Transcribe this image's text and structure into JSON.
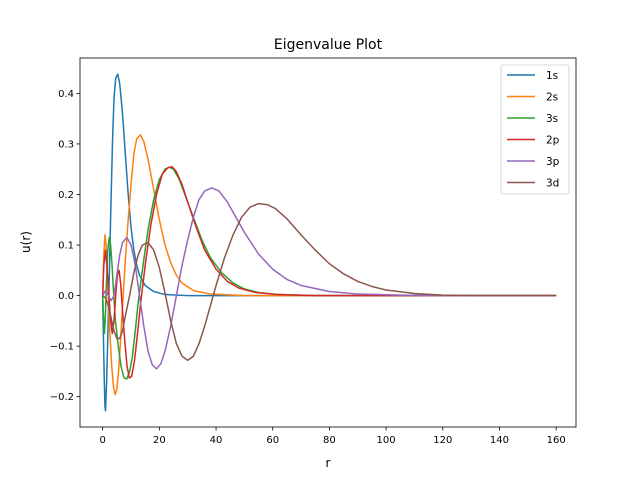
{
  "chart_data": {
    "type": "line",
    "title": "Eigenvalue Plot",
    "xlabel": "r",
    "ylabel": "u(r)",
    "xlim": [
      -8,
      167
    ],
    "ylim": [
      -0.26,
      0.47
    ],
    "xticks": [
      0,
      20,
      40,
      60,
      80,
      100,
      120,
      140,
      160
    ],
    "xtick_labels": [
      "0",
      "20",
      "40",
      "60",
      "80",
      "100",
      "120",
      "140",
      "160"
    ],
    "yticks": [
      -0.2,
      -0.1,
      0.0,
      0.1,
      0.2,
      0.3,
      0.4
    ],
    "ytick_labels": [
      "−0.2",
      "−0.1",
      "0.0",
      "0.1",
      "0.2",
      "0.3",
      "0.4"
    ],
    "grid": false,
    "legend_position": "top-right",
    "series": [
      {
        "name": "1s",
        "color": "#1f77b4",
        "points": [
          [
            0,
            0
          ],
          [
            0.5,
            -0.15
          ],
          [
            0.8,
            -0.22
          ],
          [
            1.0,
            -0.228
          ],
          [
            1.4,
            -0.17
          ],
          [
            2.0,
            -0.04
          ],
          [
            2.5,
            0.08
          ],
          [
            3.0,
            0.2
          ],
          [
            3.5,
            0.31
          ],
          [
            4.0,
            0.39
          ],
          [
            4.6,
            0.43
          ],
          [
            5.3,
            0.438
          ],
          [
            6.0,
            0.42
          ],
          [
            7.0,
            0.36
          ],
          [
            8.0,
            0.28
          ],
          [
            9.0,
            0.2
          ],
          [
            10.0,
            0.135
          ],
          [
            11.0,
            0.09
          ],
          [
            12.0,
            0.06
          ],
          [
            13.0,
            0.04
          ],
          [
            15.0,
            0.02
          ],
          [
            18.0,
            0.008
          ],
          [
            22.0,
            0.002
          ],
          [
            30.0,
            0.0
          ],
          [
            160,
            0.0
          ]
        ]
      },
      {
        "name": "2s",
        "color": "#ff7f0e",
        "points": [
          [
            0,
            0
          ],
          [
            0.4,
            0.08
          ],
          [
            0.8,
            0.12
          ],
          [
            1.2,
            0.1
          ],
          [
            1.6,
            0.05
          ],
          [
            2.0,
            -0.01
          ],
          [
            2.6,
            -0.08
          ],
          [
            3.2,
            -0.14
          ],
          [
            3.8,
            -0.18
          ],
          [
            4.4,
            -0.196
          ],
          [
            5.0,
            -0.185
          ],
          [
            5.6,
            -0.15
          ],
          [
            6.3,
            -0.09
          ],
          [
            7.0,
            -0.02
          ],
          [
            8.0,
            0.07
          ],
          [
            9.0,
            0.15
          ],
          [
            10.0,
            0.22
          ],
          [
            11.0,
            0.28
          ],
          [
            12.0,
            0.31
          ],
          [
            13.3,
            0.318
          ],
          [
            14.5,
            0.305
          ],
          [
            16.0,
            0.27
          ],
          [
            18.0,
            0.21
          ],
          [
            20.0,
            0.15
          ],
          [
            22.0,
            0.1
          ],
          [
            24.0,
            0.065
          ],
          [
            26.0,
            0.04
          ],
          [
            28.0,
            0.025
          ],
          [
            32.0,
            0.01
          ],
          [
            38.0,
            0.003
          ],
          [
            50.0,
            0.0
          ],
          [
            160,
            0.0
          ]
        ]
      },
      {
        "name": "3s",
        "color": "#2ca02c",
        "points": [
          [
            0,
            0
          ],
          [
            0.3,
            -0.04
          ],
          [
            0.6,
            -0.075
          ],
          [
            0.9,
            -0.05
          ],
          [
            1.3,
            0.02
          ],
          [
            1.8,
            0.09
          ],
          [
            2.3,
            0.115
          ],
          [
            2.8,
            0.1
          ],
          [
            3.3,
            0.06
          ],
          [
            3.8,
            0.01
          ],
          [
            4.5,
            -0.05
          ],
          [
            5.5,
            -0.1
          ],
          [
            6.5,
            -0.14
          ],
          [
            7.5,
            -0.163
          ],
          [
            8.5,
            -0.165
          ],
          [
            9.5,
            -0.15
          ],
          [
            10.5,
            -0.12
          ],
          [
            11.5,
            -0.07
          ],
          [
            12.5,
            -0.015
          ],
          [
            14.0,
            0.05
          ],
          [
            16.0,
            0.13
          ],
          [
            18.0,
            0.19
          ],
          [
            20.0,
            0.23
          ],
          [
            22.0,
            0.25
          ],
          [
            23.5,
            0.254
          ],
          [
            25.0,
            0.25
          ],
          [
            27.0,
            0.23
          ],
          [
            29.0,
            0.2
          ],
          [
            32.0,
            0.155
          ],
          [
            35.0,
            0.11
          ],
          [
            38.0,
            0.075
          ],
          [
            42.0,
            0.045
          ],
          [
            46.0,
            0.025
          ],
          [
            50.0,
            0.013
          ],
          [
            55.0,
            0.006
          ],
          [
            62.0,
            0.002
          ],
          [
            75.0,
            0.0
          ],
          [
            160,
            0.0
          ]
        ]
      },
      {
        "name": "2p",
        "color": "#d62728",
        "points": [
          [
            0,
            0
          ],
          [
            0.4,
            0.06
          ],
          [
            1.0,
            0.09
          ],
          [
            1.6,
            0.05
          ],
          [
            2.2,
            0.0
          ],
          [
            2.8,
            -0.05
          ],
          [
            3.4,
            -0.075
          ],
          [
            4.0,
            -0.05
          ],
          [
            4.6,
            0.0
          ],
          [
            5.2,
            0.04
          ],
          [
            5.8,
            0.05
          ],
          [
            6.4,
            0.02
          ],
          [
            7.0,
            -0.03
          ],
          [
            7.8,
            -0.09
          ],
          [
            8.6,
            -0.14
          ],
          [
            9.4,
            -0.163
          ],
          [
            10.2,
            -0.16
          ],
          [
            11.2,
            -0.13
          ],
          [
            12.2,
            -0.08
          ],
          [
            13.5,
            -0.01
          ],
          [
            15.0,
            0.06
          ],
          [
            17.0,
            0.14
          ],
          [
            19.0,
            0.2
          ],
          [
            21.0,
            0.24
          ],
          [
            23.0,
            0.253
          ],
          [
            24.5,
            0.255
          ],
          [
            26.0,
            0.245
          ],
          [
            28.0,
            0.22
          ],
          [
            30.0,
            0.185
          ],
          [
            33.0,
            0.135
          ],
          [
            36.0,
            0.09
          ],
          [
            40.0,
            0.052
          ],
          [
            44.0,
            0.028
          ],
          [
            48.0,
            0.015
          ],
          [
            54.0,
            0.006
          ],
          [
            62.0,
            0.002
          ],
          [
            75.0,
            0.0
          ],
          [
            160,
            0.0
          ]
        ]
      },
      {
        "name": "3p",
        "color": "#9467bd",
        "points": [
          [
            0,
            0
          ],
          [
            1.0,
            0.01
          ],
          [
            2.0,
            0.0
          ],
          [
            3.0,
            -0.01
          ],
          [
            4.0,
            0.0
          ],
          [
            5.0,
            0.04
          ],
          [
            6.0,
            0.08
          ],
          [
            7.0,
            0.105
          ],
          [
            8.5,
            0.115
          ],
          [
            10.0,
            0.1
          ],
          [
            11.5,
            0.06
          ],
          [
            13.0,
            0.0
          ],
          [
            14.5,
            -0.06
          ],
          [
            16.0,
            -0.11
          ],
          [
            17.5,
            -0.137
          ],
          [
            19.0,
            -0.145
          ],
          [
            20.5,
            -0.135
          ],
          [
            22.0,
            -0.11
          ],
          [
            24.0,
            -0.06
          ],
          [
            26.0,
            0.0
          ],
          [
            28.0,
            0.06
          ],
          [
            30.0,
            0.11
          ],
          [
            32.0,
            0.155
          ],
          [
            34.0,
            0.19
          ],
          [
            36.0,
            0.207
          ],
          [
            38.5,
            0.213
          ],
          [
            41.0,
            0.207
          ],
          [
            44.0,
            0.185
          ],
          [
            47.0,
            0.155
          ],
          [
            50.0,
            0.125
          ],
          [
            55.0,
            0.082
          ],
          [
            60.0,
            0.052
          ],
          [
            65.0,
            0.032
          ],
          [
            70.0,
            0.02
          ],
          [
            80.0,
            0.008
          ],
          [
            90.0,
            0.003
          ],
          [
            105.0,
            0.001
          ],
          [
            120.0,
            0.0
          ],
          [
            160,
            0.0
          ]
        ]
      },
      {
        "name": "3d",
        "color": "#8c564b",
        "points": [
          [
            0,
            0
          ],
          [
            1.0,
            -0.005
          ],
          [
            2.0,
            -0.02
          ],
          [
            3.0,
            -0.045
          ],
          [
            4.0,
            -0.07
          ],
          [
            5.0,
            -0.085
          ],
          [
            6.0,
            -0.085
          ],
          [
            7.0,
            -0.07
          ],
          [
            8.0,
            -0.04
          ],
          [
            9.5,
            0.0
          ],
          [
            11.0,
            0.045
          ],
          [
            12.5,
            0.08
          ],
          [
            14.0,
            0.1
          ],
          [
            16.0,
            0.105
          ],
          [
            18.0,
            0.09
          ],
          [
            20.0,
            0.055
          ],
          [
            22.0,
            0.005
          ],
          [
            24.0,
            -0.05
          ],
          [
            26.0,
            -0.095
          ],
          [
            28.0,
            -0.12
          ],
          [
            30.0,
            -0.128
          ],
          [
            32.0,
            -0.12
          ],
          [
            34.0,
            -0.095
          ],
          [
            36.0,
            -0.06
          ],
          [
            38.0,
            -0.02
          ],
          [
            40.0,
            0.02
          ],
          [
            43.0,
            0.075
          ],
          [
            46.0,
            0.12
          ],
          [
            49.0,
            0.155
          ],
          [
            52.0,
            0.175
          ],
          [
            55.0,
            0.182
          ],
          [
            58.0,
            0.18
          ],
          [
            61.0,
            0.172
          ],
          [
            65.0,
            0.152
          ],
          [
            70.0,
            0.12
          ],
          [
            75.0,
            0.09
          ],
          [
            80.0,
            0.063
          ],
          [
            85.0,
            0.043
          ],
          [
            90.0,
            0.028
          ],
          [
            95.0,
            0.018
          ],
          [
            100.0,
            0.011
          ],
          [
            110.0,
            0.004
          ],
          [
            120.0,
            0.001
          ],
          [
            130.0,
            0.0
          ],
          [
            160,
            0.0
          ]
        ]
      }
    ]
  }
}
